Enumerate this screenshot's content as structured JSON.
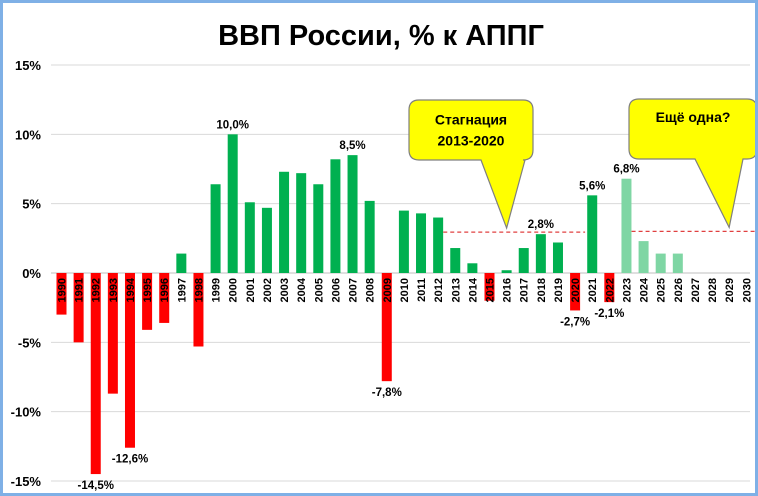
{
  "chart_data": {
    "type": "bar",
    "title": "ВВП России, % к АППГ",
    "xlabel": "",
    "ylabel": "",
    "ylim": [
      -15,
      15
    ],
    "yticks": [
      15,
      10,
      5,
      0,
      -5,
      -10,
      -15
    ],
    "ytick_labels": [
      "15%",
      "10%",
      "5%",
      "0%",
      "-5%",
      "-10%",
      "-15%"
    ],
    "grid": true,
    "colors": {
      "positive": "#00b050",
      "negative": "#ff0000",
      "forecast": "#7fd6a4",
      "trend_line": "#e04040",
      "callout_fill": "#ffff00",
      "callout_border": "#7f7f7f"
    },
    "categories": [
      "1990",
      "1991",
      "1992",
      "1993",
      "1994",
      "1995",
      "1996",
      "1997",
      "1998",
      "1999",
      "2000",
      "2001",
      "2002",
      "2003",
      "2004",
      "2005",
      "2006",
      "2007",
      "2008",
      "2009",
      "2010",
      "2011",
      "2012",
      "2013",
      "2014",
      "2015",
      "2016",
      "2017",
      "2018",
      "2019",
      "2020",
      "2021",
      "2022",
      "2023",
      "2024",
      "2025",
      "2026",
      "2027",
      "2028",
      "2029",
      "2030"
    ],
    "values": [
      -3.0,
      -5.0,
      -14.5,
      -8.7,
      -12.6,
      -4.1,
      -3.6,
      1.4,
      -5.3,
      6.4,
      10.0,
      5.1,
      4.7,
      7.3,
      7.2,
      6.4,
      8.2,
      8.5,
      5.2,
      -7.8,
      4.5,
      4.3,
      4.0,
      1.8,
      0.7,
      -2.0,
      0.2,
      1.8,
      2.8,
      2.2,
      -2.7,
      5.6,
      -2.1,
      6.8,
      2.3,
      1.4,
      1.4,
      null,
      null,
      null,
      null
    ],
    "forecast_from": "2023",
    "data_labels": [
      {
        "category": "1992",
        "text": "-14,5%"
      },
      {
        "category": "1994",
        "text": "-12,6%"
      },
      {
        "category": "2000",
        "text": "10,0%"
      },
      {
        "category": "2007",
        "text": "8,5%"
      },
      {
        "category": "2009",
        "text": "-7,8%"
      },
      {
        "category": "2018",
        "text": "2,8%"
      },
      {
        "category": "2020",
        "text": "-2,7%"
      },
      {
        "category": "2021",
        "text": "5,6%"
      },
      {
        "category": "2022",
        "text": "-2,1%"
      },
      {
        "category": "2023",
        "text": "6,8%"
      }
    ],
    "trend_lines": [
      {
        "from": "2013",
        "to": "2020",
        "value": 2.95
      },
      {
        "from": "2024",
        "to": "2030",
        "value": 3.0
      }
    ],
    "annotations": [
      {
        "lines": [
          "Стагнация",
          "2013-2020"
        ],
        "points_to": "2016",
        "value": 2.95
      },
      {
        "lines": [
          "Ещё одна?"
        ],
        "points_to": "2029",
        "value": 3.0
      }
    ]
  }
}
